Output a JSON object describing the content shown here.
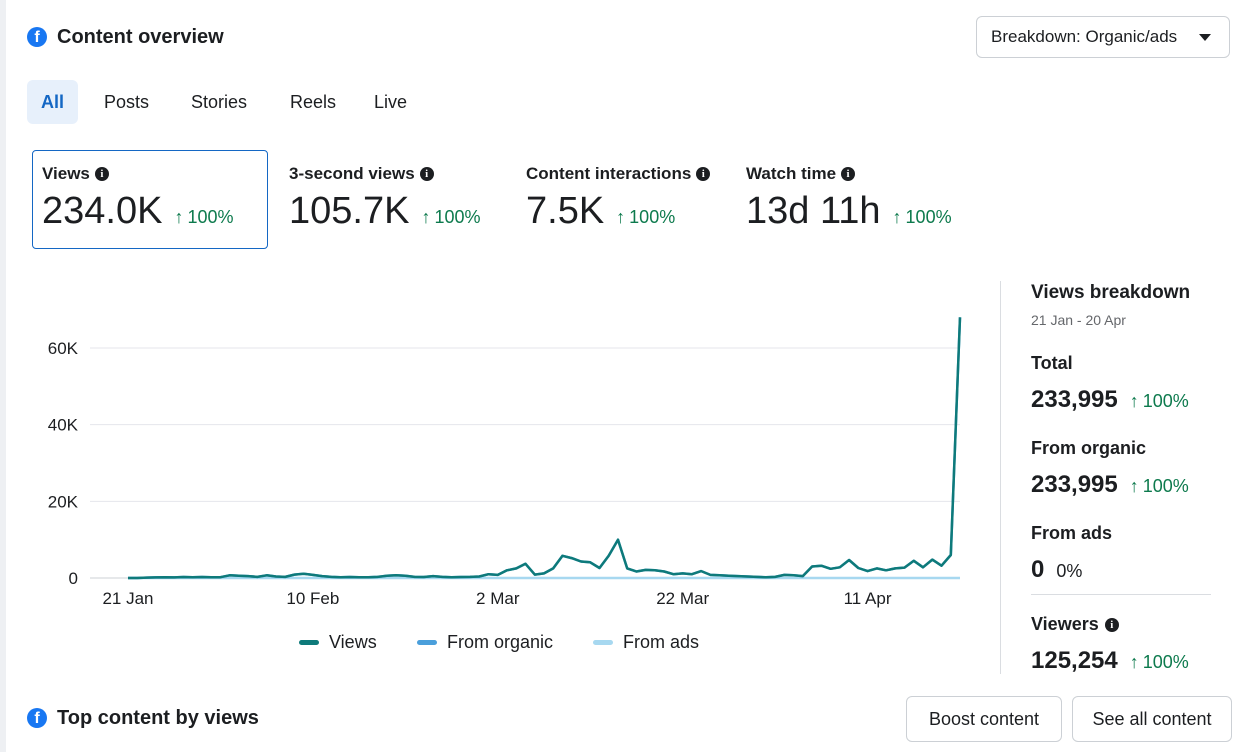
{
  "header": {
    "title": "Content overview",
    "breakdown_dropdown": "Breakdown: Organic/ads"
  },
  "tabs": [
    {
      "label": "All",
      "active": true
    },
    {
      "label": "Posts",
      "active": false
    },
    {
      "label": "Stories",
      "active": false
    },
    {
      "label": "Reels",
      "active": false
    },
    {
      "label": "Live",
      "active": false
    }
  ],
  "metrics": [
    {
      "label": "Views",
      "value": "234.0K",
      "change": "100%",
      "selected": true
    },
    {
      "label": "3-second views",
      "value": "105.7K",
      "change": "100%",
      "selected": false
    },
    {
      "label": "Content interactions",
      "value": "7.5K",
      "change": "100%",
      "selected": false
    },
    {
      "label": "Watch time",
      "value": "13d 11h",
      "change": "100%",
      "selected": false
    }
  ],
  "chart_data": {
    "type": "line",
    "title": "",
    "xlabel": "",
    "ylabel": "",
    "x_tick_labels": [
      "21 Jan",
      "10 Feb",
      "2 Mar",
      "22 Mar",
      "11 Apr"
    ],
    "y_tick_labels": [
      "0",
      "20K",
      "40K",
      "60K"
    ],
    "ylim": [
      0,
      70000
    ],
    "x_start": "21 Jan",
    "x_end": "20 Apr",
    "grid": true,
    "legend_position": "bottom",
    "series": [
      {
        "name": "Views",
        "color": "#0e7a7a",
        "values": [
          0,
          0,
          100,
          150,
          200,
          150,
          250,
          200,
          250,
          200,
          200,
          700,
          600,
          500,
          300,
          700,
          400,
          300,
          900,
          1100,
          800,
          500,
          300,
          200,
          250,
          200,
          200,
          300,
          600,
          700,
          600,
          300,
          250,
          500,
          300,
          200,
          250,
          300,
          400,
          1000,
          800,
          2000,
          2500,
          3700,
          900,
          1200,
          2500,
          5800,
          5200,
          4300,
          4100,
          2600,
          5800,
          10000,
          2500,
          1700,
          2100,
          2000,
          1700,
          1000,
          1200,
          1000,
          1800,
          800,
          700,
          600,
          500,
          400,
          300,
          200,
          300,
          800,
          700,
          500,
          3000,
          3200,
          2400,
          2800,
          4700,
          2600,
          1800,
          2500,
          2000,
          2500,
          2700,
          4500,
          2800,
          4800,
          3200,
          6000,
          68000
        ]
      },
      {
        "name": "From organic",
        "color": "#4a9fdb",
        "values": [
          0,
          0,
          100,
          150,
          200,
          150,
          250,
          200,
          250,
          200,
          200,
          700,
          600,
          500,
          300,
          700,
          400,
          300,
          900,
          1100,
          800,
          500,
          300,
          200,
          250,
          200,
          200,
          300,
          600,
          700,
          600,
          300,
          250,
          500,
          300,
          200,
          250,
          300,
          400,
          1000,
          800,
          2000,
          2500,
          3700,
          900,
          1200,
          2500,
          5800,
          5200,
          4300,
          4100,
          2600,
          5800,
          10000,
          2500,
          1700,
          2100,
          2000,
          1700,
          1000,
          1200,
          1000,
          1800,
          800,
          700,
          600,
          500,
          400,
          300,
          200,
          300,
          800,
          700,
          500,
          3000,
          3200,
          2400,
          2800,
          4700,
          2600,
          1800,
          2500,
          2000,
          2500,
          2700,
          4500,
          2800,
          4800,
          3200,
          6000,
          68000
        ]
      },
      {
        "name": "From ads",
        "color": "#a7d8f0",
        "values": [
          0,
          0,
          0,
          0,
          0,
          0,
          0,
          0,
          0,
          0,
          0,
          0,
          0,
          0,
          0,
          0,
          0,
          0,
          0,
          0,
          0,
          0,
          0,
          0,
          0,
          0,
          0,
          0,
          0,
          0,
          0,
          0,
          0,
          0,
          0,
          0,
          0,
          0,
          0,
          0,
          0,
          0,
          0,
          0,
          0,
          0,
          0,
          0,
          0,
          0,
          0,
          0,
          0,
          0,
          0,
          0,
          0,
          0,
          0,
          0,
          0,
          0,
          0,
          0,
          0,
          0,
          0,
          0,
          0,
          0,
          0,
          0,
          0,
          0,
          0,
          0,
          0,
          0,
          0,
          0,
          0,
          0,
          0,
          0,
          0,
          0,
          0,
          0,
          0,
          0,
          0
        ]
      }
    ]
  },
  "breakdown": {
    "title": "Views breakdown",
    "range": "21 Jan - 20 Apr",
    "total_label": "Total",
    "total_value": "233,995",
    "total_change": "100%",
    "organic_label": "From organic",
    "organic_value": "233,995",
    "organic_change": "100%",
    "ads_label": "From ads",
    "ads_value": "0",
    "ads_change": "0%",
    "viewers_label": "Viewers",
    "viewers_value": "125,254",
    "viewers_change": "100%"
  },
  "top_content": {
    "title": "Top content by views",
    "boost_button": "Boost content",
    "see_all_button": "See all content"
  },
  "icons": {
    "facebook": "facebook-logo-icon",
    "info": "info-icon",
    "arrow_up": "arrow-up-icon",
    "caret_down": "caret-down-icon"
  },
  "colors": {
    "accent": "#1467c4",
    "positive": "#0d7a4d",
    "facebook": "#1877f2"
  }
}
